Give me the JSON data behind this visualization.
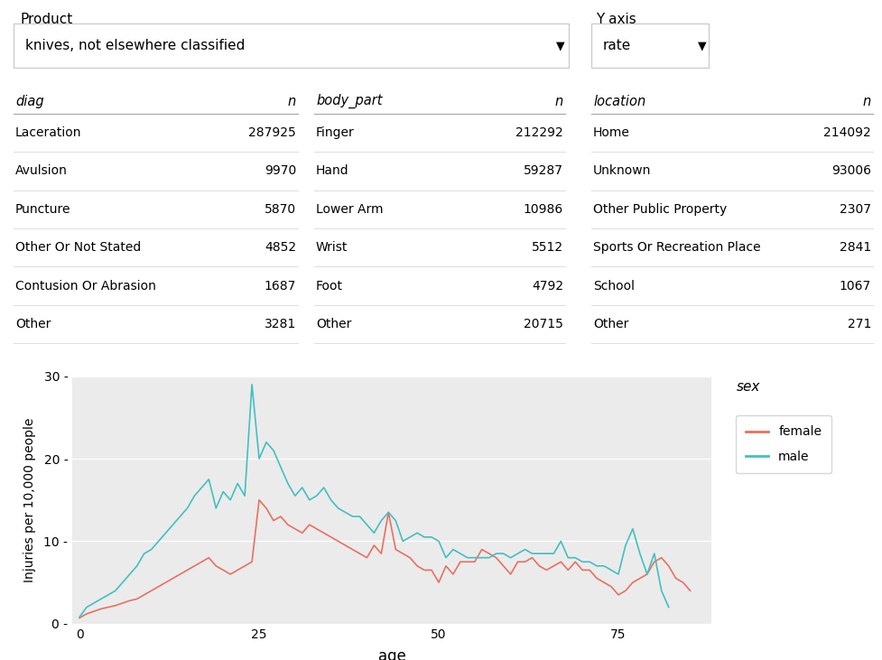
{
  "product_label": "Product",
  "product_value": "knives, not elsewhere classified",
  "yaxis_label": "Y axis",
  "yaxis_value": "rate",
  "diag_header": [
    "diag",
    "n"
  ],
  "diag_rows": [
    [
      "Laceration",
      "287925"
    ],
    [
      "Avulsion",
      "9970"
    ],
    [
      "Puncture",
      "5870"
    ],
    [
      "Other Or Not Stated",
      "4852"
    ],
    [
      "Contusion Or Abrasion",
      "1687"
    ],
    [
      "Other",
      "3281"
    ]
  ],
  "body_header": [
    "body_part",
    "n"
  ],
  "body_rows": [
    [
      "Finger",
      "212292"
    ],
    [
      "Hand",
      "59287"
    ],
    [
      "Lower Arm",
      "10986"
    ],
    [
      "Wrist",
      "5512"
    ],
    [
      "Foot",
      "4792"
    ],
    [
      "Other",
      "20715"
    ]
  ],
  "location_header": [
    "location",
    "n"
  ],
  "location_rows": [
    [
      "Home",
      "214092"
    ],
    [
      "Unknown",
      "93006"
    ],
    [
      "Other Public Property",
      "2307"
    ],
    [
      "Sports Or Recreation Place",
      "2841"
    ],
    [
      "School",
      "1067"
    ],
    [
      "Other",
      "271"
    ]
  ],
  "xlabel": "age",
  "ylabel": "Injuries per 10,000 people",
  "ylim": [
    0,
    30
  ],
  "yticks": [
    0,
    10,
    20,
    30
  ],
  "xticks": [
    0,
    25,
    50,
    75
  ],
  "legend_title": "sex",
  "legend_entries": [
    "female",
    "male"
  ],
  "line_colors": {
    "female": "#E87060",
    "male": "#44BFC1"
  },
  "bg_color": "#EBEBEB",
  "female_age": [
    0,
    1,
    2,
    3,
    4,
    5,
    6,
    7,
    8,
    9,
    10,
    11,
    12,
    13,
    14,
    15,
    16,
    17,
    18,
    19,
    20,
    21,
    22,
    23,
    24,
    25,
    26,
    27,
    28,
    29,
    30,
    31,
    32,
    33,
    34,
    35,
    36,
    37,
    38,
    39,
    40,
    41,
    42,
    43,
    44,
    45,
    46,
    47,
    48,
    49,
    50,
    51,
    52,
    53,
    54,
    55,
    56,
    57,
    58,
    59,
    60,
    61,
    62,
    63,
    64,
    65,
    66,
    67,
    68,
    69,
    70,
    71,
    72,
    73,
    74,
    75,
    76,
    77,
    78,
    79,
    80,
    81,
    82,
    83,
    84,
    85
  ],
  "female_rate": [
    0.7,
    1.2,
    1.5,
    1.8,
    2.0,
    2.2,
    2.5,
    2.8,
    3.0,
    3.5,
    4.0,
    4.5,
    5.0,
    5.5,
    6.0,
    6.5,
    7.0,
    7.5,
    8.0,
    7.0,
    6.5,
    6.0,
    6.5,
    7.0,
    7.5,
    15.0,
    14.0,
    12.5,
    13.0,
    12.0,
    11.5,
    11.0,
    12.0,
    11.5,
    11.0,
    10.5,
    10.0,
    9.5,
    9.0,
    8.5,
    8.0,
    9.5,
    8.5,
    13.5,
    9.0,
    8.5,
    8.0,
    7.0,
    6.5,
    6.5,
    5.0,
    7.0,
    6.0,
    7.5,
    7.5,
    7.5,
    9.0,
    8.5,
    8.0,
    7.0,
    6.0,
    7.5,
    7.5,
    8.0,
    7.0,
    6.5,
    7.0,
    7.5,
    6.5,
    7.5,
    6.5,
    6.5,
    5.5,
    5.0,
    4.5,
    3.5,
    4.0,
    5.0,
    5.5,
    6.0,
    7.5,
    8.0,
    7.0,
    5.5,
    5.0,
    4.0
  ],
  "male_age": [
    0,
    1,
    2,
    3,
    4,
    5,
    6,
    7,
    8,
    9,
    10,
    11,
    12,
    13,
    14,
    15,
    16,
    17,
    18,
    19,
    20,
    21,
    22,
    23,
    24,
    25,
    26,
    27,
    28,
    29,
    30,
    31,
    32,
    33,
    34,
    35,
    36,
    37,
    38,
    39,
    40,
    41,
    42,
    43,
    44,
    45,
    46,
    47,
    48,
    49,
    50,
    51,
    52,
    53,
    54,
    55,
    56,
    57,
    58,
    59,
    60,
    61,
    62,
    63,
    64,
    65,
    66,
    67,
    68,
    69,
    70,
    71,
    72,
    73,
    74,
    75,
    76,
    77,
    78,
    79,
    80,
    81,
    82,
    83,
    84,
    85
  ],
  "male_rate": [
    0.8,
    2.0,
    2.5,
    3.0,
    3.5,
    4.0,
    5.0,
    6.0,
    7.0,
    8.5,
    9.0,
    10.0,
    11.0,
    12.0,
    13.0,
    14.0,
    15.5,
    16.5,
    17.5,
    14.0,
    16.0,
    15.0,
    17.0,
    15.5,
    29.0,
    20.0,
    22.0,
    21.0,
    19.0,
    17.0,
    15.5,
    16.5,
    15.0,
    15.5,
    16.5,
    15.0,
    14.0,
    13.5,
    13.0,
    13.0,
    12.0,
    11.0,
    12.5,
    13.5,
    12.5,
    10.0,
    10.5,
    11.0,
    10.5,
    10.5,
    10.0,
    8.0,
    9.0,
    8.5,
    8.0,
    8.0,
    8.0,
    8.0,
    8.5,
    8.5,
    8.0,
    8.5,
    9.0,
    8.5,
    8.5,
    8.5,
    8.5,
    10.0,
    8.0,
    8.0,
    7.5,
    7.5,
    7.0,
    7.0,
    6.5,
    6.0,
    9.5,
    11.5,
    8.5,
    6.0,
    8.5,
    4.0,
    2.0,
    null,
    null,
    null
  ]
}
